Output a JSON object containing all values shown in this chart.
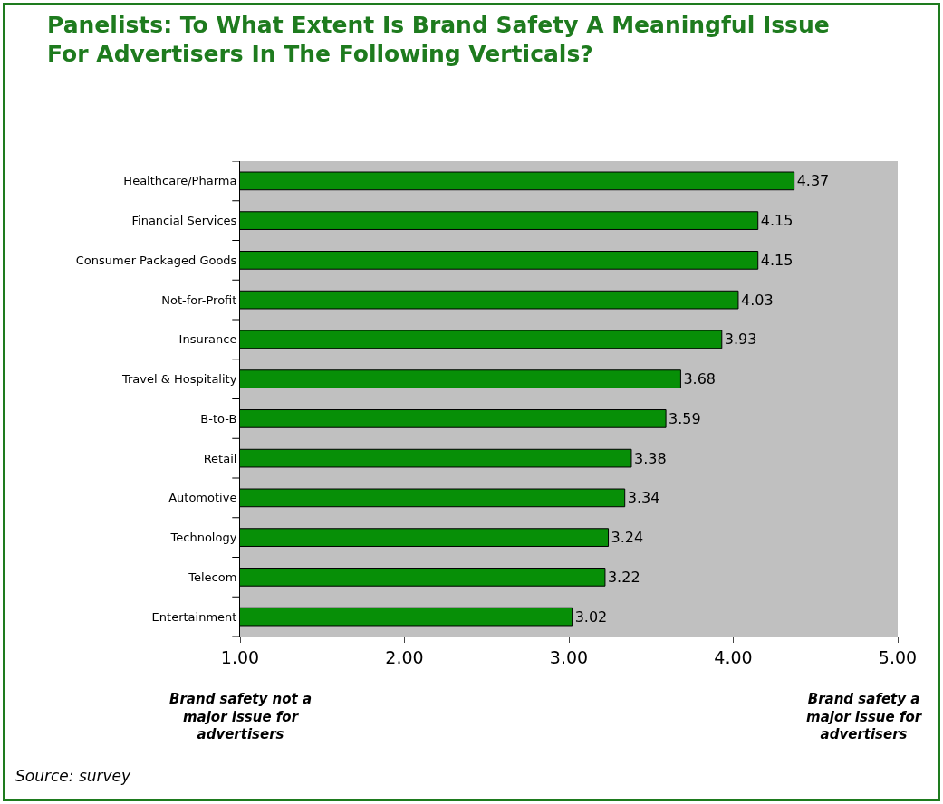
{
  "chart_data": {
    "type": "bar",
    "orientation": "horizontal",
    "title": "Panelists: To What Extent Is Brand Safety A Meaningful Issue\nFor Advertisers In The Following Verticals?",
    "categories": [
      "Healthcare/Pharma",
      "Financial Services",
      "Consumer Packaged Goods",
      "Not-for-Profit",
      "Insurance",
      "Travel & Hospitality",
      "B-to-B",
      "Retail",
      "Automotive",
      "Technology",
      "Telecom",
      "Entertainment"
    ],
    "values": [
      4.37,
      4.15,
      4.15,
      4.03,
      3.93,
      3.68,
      3.59,
      3.38,
      3.34,
      3.24,
      3.22,
      3.02
    ],
    "color": "#078f07",
    "data_labels": true,
    "xlim": [
      1,
      5
    ],
    "xticks": [
      {
        "value": 1,
        "label": "1.00"
      },
      {
        "value": 2,
        "label": "2.00"
      },
      {
        "value": 3,
        "label": "3.00"
      },
      {
        "value": 4,
        "label": "4.00"
      },
      {
        "value": 5,
        "label": "5.00"
      }
    ],
    "grid": false,
    "legend": false,
    "annotations": [
      "Brand safety not a\nmajor issue for\nadvertisers",
      "Brand safety a\nmajor issue for\nadvertisers",
      "Source: survey"
    ]
  }
}
